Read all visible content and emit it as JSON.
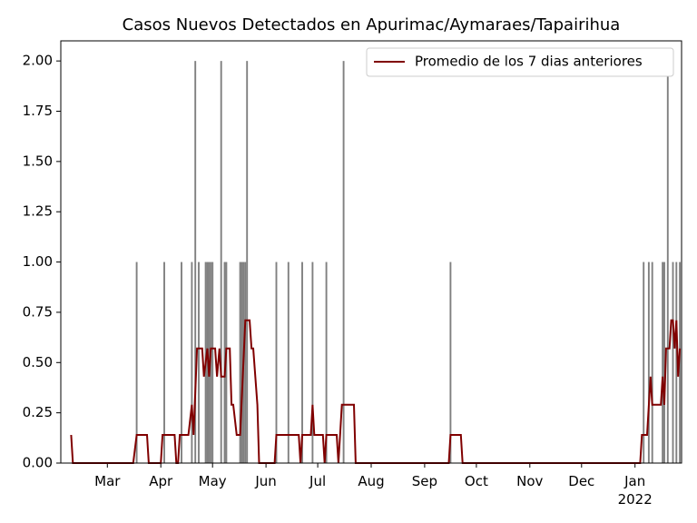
{
  "chart_data": {
    "type": "bar",
    "title": "Casos Nuevos Detectados en Apurimac/Aymaraes/Tapairihua",
    "bars": {
      "color": "#808080",
      "x": [
        76,
        92,
        102,
        108,
        110,
        112,
        116,
        117,
        118,
        119,
        120,
        125,
        127,
        128,
        136,
        137,
        138,
        139,
        140,
        157,
        164,
        172,
        178,
        186,
        196,
        258,
        370,
        373,
        375,
        381,
        382,
        384,
        387,
        389,
        391
      ],
      "values": [
        1,
        1,
        1,
        1,
        2,
        1,
        1,
        1,
        1,
        1,
        1,
        2,
        1,
        1,
        1,
        1,
        1,
        1,
        2,
        1,
        1,
        1,
        1,
        1,
        2,
        1,
        1,
        1,
        1,
        1,
        1,
        2,
        1,
        1,
        1
      ]
    },
    "line": {
      "name": "Promedio de los 7 dias anteriores",
      "color": "#800000",
      "x": [
        38,
        39,
        74,
        76,
        82,
        83,
        90,
        91,
        98,
        99,
        100,
        101,
        106,
        108,
        109,
        111,
        114,
        115,
        117,
        118,
        119,
        121.5,
        122.6,
        124,
        125,
        127,
        128,
        130,
        131,
        132,
        134,
        136,
        139,
        141.5,
        142.6,
        143.6,
        146,
        147,
        156,
        157,
        170,
        171,
        172,
        177,
        178,
        179,
        184,
        185,
        186,
        192,
        193,
        195,
        202,
        203,
        257,
        258,
        264,
        265,
        368,
        369,
        372,
        374,
        375,
        380,
        381,
        382,
        383,
        385,
        386,
        387,
        388,
        389,
        390,
        391
      ],
      "values": [
        0.14,
        0,
        0,
        0.14,
        0.14,
        0,
        0,
        0.14,
        0.14,
        0,
        0,
        0.14,
        0.14,
        0.29,
        0.14,
        0.57,
        0.57,
        0.43,
        0.57,
        0.43,
        0.57,
        0.57,
        0.43,
        0.57,
        0.43,
        0.43,
        0.57,
        0.57,
        0.29,
        0.29,
        0.14,
        0.14,
        0.71,
        0.71,
        0.57,
        0.57,
        0.29,
        0,
        0,
        0.14,
        0.14,
        0,
        0.14,
        0.14,
        0.29,
        0.14,
        0.14,
        0,
        0.14,
        0.14,
        0,
        0.29,
        0.29,
        0,
        0,
        0.14,
        0.14,
        0,
        0,
        0.14,
        0.14,
        0.43,
        0.29,
        0.29,
        0.43,
        0.29,
        0.57,
        0.57,
        0.71,
        0.71,
        0.57,
        0.71,
        0.43,
        0.57
      ]
    },
    "xlim": [
      32,
      392
    ],
    "xticks": [
      {
        "value": 59,
        "label": "Mar"
      },
      {
        "value": 90,
        "label": "Apr"
      },
      {
        "value": 120,
        "label": "May"
      },
      {
        "value": 151,
        "label": "Jun"
      },
      {
        "value": 181,
        "label": "Jul"
      },
      {
        "value": 212,
        "label": "Aug"
      },
      {
        "value": 243,
        "label": "Sep"
      },
      {
        "value": 273,
        "label": "Oct"
      },
      {
        "value": 304,
        "label": "Nov"
      },
      {
        "value": 334,
        "label": "Dec"
      },
      {
        "value": 365,
        "label": "Jan\n2022"
      }
    ],
    "ylim": [
      0,
      2.1
    ],
    "yticks": [
      {
        "value": 0,
        "label": "0.00"
      },
      {
        "value": 0.25,
        "label": "0.25"
      },
      {
        "value": 0.5,
        "label": "0.50"
      },
      {
        "value": 0.75,
        "label": "0.75"
      },
      {
        "value": 1,
        "label": "1.00"
      },
      {
        "value": 1.25,
        "label": "1.25"
      },
      {
        "value": 1.5,
        "label": "1.50"
      },
      {
        "value": 1.75,
        "label": "1.75"
      },
      {
        "value": 2,
        "label": "2.00"
      }
    ],
    "legend": "upper right"
  }
}
